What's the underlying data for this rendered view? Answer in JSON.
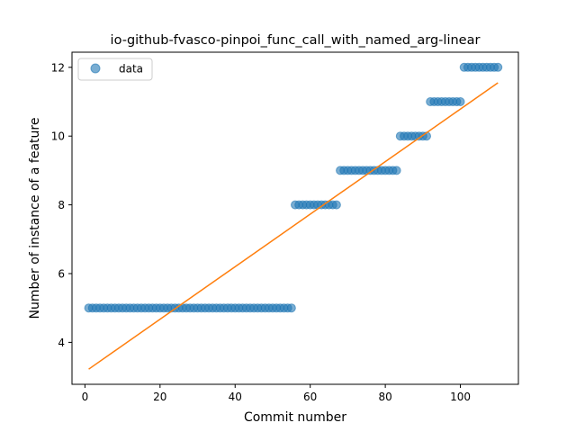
{
  "chart_data": {
    "type": "scatter",
    "title": "io-github-fvasco-pinpoi_func_call_with_named_arg-linear",
    "xlabel": "Commit number",
    "ylabel": "Number of instance of a feature",
    "xlim": [
      -3.45,
      115.45
    ],
    "ylim": [
      2.78,
      12.44
    ],
    "xticks": [
      0,
      20,
      40,
      60,
      80,
      100
    ],
    "yticks": [
      4,
      6,
      8,
      10,
      12
    ],
    "grid": false,
    "legend": {
      "placement": "top-left",
      "entries": [
        "data"
      ]
    },
    "series": [
      {
        "name": "data",
        "kind": "scatter",
        "color": "#1f77b4",
        "segments": [
          {
            "x_start": 1,
            "x_end": 55,
            "y": 5
          },
          {
            "x_start": 56,
            "x_end": 67,
            "y": 8
          },
          {
            "x_start": 68,
            "x_end": 83,
            "y": 9
          },
          {
            "x_start": 84,
            "x_end": 91,
            "y": 10
          },
          {
            "x_start": 92,
            "x_end": 100,
            "y": 11
          },
          {
            "x_start": 101,
            "x_end": 110,
            "y": 12
          }
        ]
      },
      {
        "kind": "line",
        "color": "#ff7f0e",
        "x": [
          1,
          110
        ],
        "y": [
          3.22,
          11.55
        ]
      }
    ]
  }
}
